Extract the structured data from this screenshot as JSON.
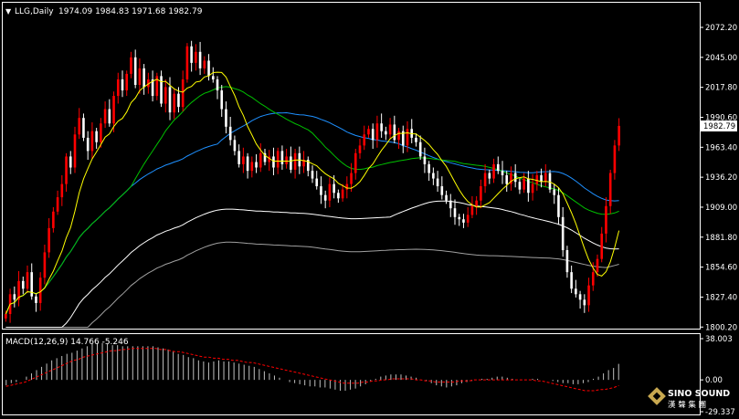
{
  "header": {
    "arrow_glyph": "▼",
    "symbol": "LLG,Daily",
    "ohlc": "1974.09 1984.83 1971.68 1982.79"
  },
  "macd_header": "MACD(12,26,9) 14.766 -5.246",
  "watermark": {
    "line1": "SINO SOUND",
    "line2": "漢 聲 集 團"
  },
  "colors": {
    "background": "#000000",
    "frame": "#ffffff",
    "bull_candle": "#ff0000",
    "bear_candle": "#ffffff",
    "ma_yellow": "#ffff00",
    "ma_green": "#00c000",
    "ma_blue": "#1e90ff",
    "ma_white": "#ffffff",
    "ma_gray": "#a0a0a0",
    "macd_hist": "#c0c0c0",
    "macd_signal": "#ff0000"
  },
  "chart_data": [
    {
      "type": "candlestick",
      "symbol": "LLG",
      "timeframe": "Daily",
      "last_price": "1982.79",
      "ylim": [
        1800.0,
        2072.2
      ],
      "yticks": [
        "2072.20",
        "2045.00",
        "2017.80",
        "1990.60",
        "1963.40",
        "1936.20",
        "1909.00",
        "1881.80",
        "1854.60",
        "1827.40",
        "1800.20"
      ],
      "closes": [
        1812,
        1830,
        1825,
        1842,
        1835,
        1850,
        1828,
        1822,
        1845,
        1868,
        1890,
        1905,
        1918,
        1930,
        1955,
        1945,
        1975,
        1990,
        1972,
        1960,
        1978,
        1968,
        1985,
        1998,
        1985,
        2010,
        2025,
        2015,
        2030,
        2045,
        2020,
        2035,
        2018,
        2025,
        2010,
        2028,
        2003,
        2018,
        1995,
        2012,
        2000,
        2025,
        2055,
        2040,
        2050,
        2035,
        2042,
        2028,
        2025,
        2015,
        1998,
        1982,
        1970,
        1960,
        1948,
        1955,
        1942,
        1950,
        1945,
        1958,
        1950,
        1955,
        1945,
        1960,
        1948,
        1955,
        1943,
        1958,
        1946,
        1952,
        1942,
        1935,
        1928,
        1920,
        1915,
        1930,
        1922,
        1917,
        1925,
        1930,
        1940,
        1958,
        1965,
        1975,
        1980,
        1970,
        1985,
        1978,
        1975,
        1984,
        1970,
        1978,
        1965,
        1980,
        1972,
        1968,
        1955,
        1948,
        1940,
        1935,
        1928,
        1920,
        1915,
        1908,
        1900,
        1898,
        1895,
        1902,
        1910,
        1915,
        1928,
        1940,
        1935,
        1948,
        1942,
        1938,
        1930,
        1940,
        1932,
        1925,
        1935,
        1922,
        1930,
        1938,
        1932,
        1940,
        1925,
        1920,
        1900,
        1870,
        1850,
        1835,
        1830,
        1825,
        1820,
        1838,
        1850,
        1862,
        1885,
        1910,
        1940,
        1965,
        1982.79
      ],
      "macd": {
        "ylim": [
          -29.337,
          38.003
        ],
        "yticks": [
          "38.003",
          "0.00",
          "-29.337"
        ],
        "histogram": [
          -5,
          -3,
          -2,
          0,
          3,
          6,
          9,
          12,
          15,
          18,
          20,
          22,
          24,
          25,
          27,
          29,
          31,
          33,
          34,
          34,
          33,
          32,
          32,
          31,
          31,
          31,
          31,
          31,
          31,
          31,
          30,
          29,
          28,
          26,
          24,
          23,
          21,
          20,
          18,
          17,
          16,
          17,
          18,
          17,
          17,
          16,
          15,
          14,
          13,
          12,
          10,
          8,
          6,
          4,
          2,
          0,
          -2,
          -3,
          -4,
          -5,
          -6,
          -6,
          -7,
          -7,
          -8,
          -9,
          -10,
          -10,
          -9,
          -8,
          -6,
          -4,
          -1,
          1,
          3,
          4,
          5,
          5,
          5,
          4,
          3,
          2,
          0,
          -1,
          -3,
          -5,
          -6,
          -7,
          -6,
          -5,
          -3,
          -2,
          -1,
          0,
          1,
          1,
          2,
          3,
          3,
          2,
          1,
          0,
          0,
          0,
          1,
          1,
          0,
          0,
          -1,
          -2,
          -3,
          -3,
          -4,
          -4,
          -3,
          -2,
          1,
          3,
          6,
          9,
          11,
          14.766
        ],
        "signal": [
          -6,
          -5,
          -4,
          -3,
          -2,
          0,
          2,
          4,
          6,
          8,
          10,
          12,
          14,
          16,
          18,
          19,
          21,
          22,
          23,
          24,
          25,
          26,
          27,
          27,
          28,
          28,
          29,
          29,
          29,
          29,
          29,
          29,
          28,
          28,
          27,
          26,
          26,
          25,
          24,
          23,
          22,
          21,
          21,
          20,
          20,
          19,
          19,
          18,
          18,
          17,
          16,
          16,
          15,
          14,
          13,
          12,
          11,
          10,
          9,
          8,
          7,
          6,
          5,
          4,
          3,
          2,
          1,
          0,
          -1,
          -2,
          -3,
          -3,
          -3,
          -3,
          -2,
          -2,
          -1,
          -1,
          0,
          0,
          1,
          1,
          1,
          1,
          1,
          0,
          0,
          -1,
          -1,
          -2,
          -2,
          -2,
          -2,
          -2,
          -1,
          -1,
          -1,
          0,
          0,
          0,
          0,
          0,
          0,
          0,
          0,
          0,
          0,
          0,
          0,
          0,
          -1,
          -1,
          -2,
          -3,
          -4,
          -5,
          -6,
          -7,
          -8,
          -9,
          -10,
          -10,
          -10,
          -9,
          -9,
          -8,
          -7,
          -5.246
        ]
      }
    }
  ]
}
